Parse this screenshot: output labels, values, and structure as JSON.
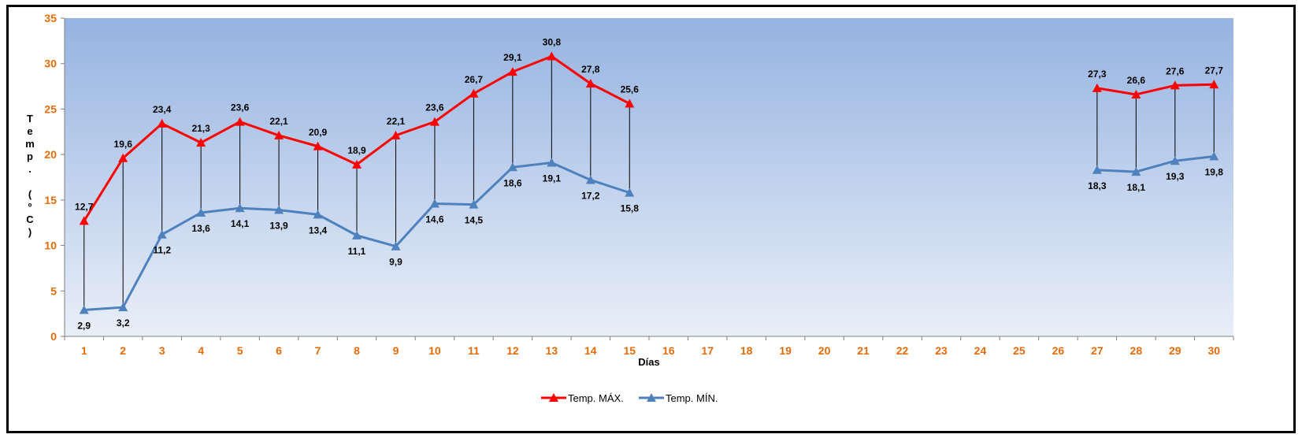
{
  "chart_data": {
    "type": "line",
    "xlabel": "Días",
    "ylabel_chars": [
      "T",
      "e",
      "m",
      "p",
      ".",
      "",
      "(",
      "º",
      "C",
      ")"
    ],
    "ylim": [
      0,
      35
    ],
    "yticks": [
      0,
      5,
      10,
      15,
      20,
      25,
      30,
      35
    ],
    "categories": [
      "1",
      "2",
      "3",
      "4",
      "5",
      "6",
      "7",
      "8",
      "9",
      "10",
      "11",
      "12",
      "13",
      "14",
      "15",
      "16",
      "17",
      "18",
      "19",
      "20",
      "21",
      "22",
      "23",
      "24",
      "25",
      "26",
      "27",
      "28",
      "29",
      "30"
    ],
    "grid": false,
    "legend_position": "bottom",
    "series": [
      {
        "name": "Temp. MÁX.",
        "color": "#FF0000",
        "values": [
          12.7,
          19.6,
          23.4,
          21.3,
          23.6,
          22.1,
          20.9,
          18.9,
          22.1,
          23.6,
          26.7,
          29.1,
          30.8,
          27.8,
          25.6,
          null,
          null,
          null,
          null,
          null,
          null,
          null,
          null,
          null,
          null,
          null,
          27.3,
          26.6,
          27.6,
          27.7
        ],
        "labels": [
          "12,7",
          "19,6",
          "23,4",
          "21,3",
          "23,6",
          "22,1",
          "20,9",
          "18,9",
          "22,1",
          "23,6",
          "26,7",
          "29,1",
          "30,8",
          "27,8",
          "25,6",
          "",
          "",
          "",
          "",
          "",
          "",
          "",
          "",
          "",
          "",
          "",
          "27,3",
          "26,6",
          "27,6",
          "27,7"
        ]
      },
      {
        "name": "Temp. MÍN.",
        "color": "#4F81BD",
        "values": [
          2.9,
          3.2,
          11.2,
          13.6,
          14.1,
          13.9,
          13.4,
          11.1,
          9.9,
          14.6,
          14.5,
          18.6,
          19.1,
          17.2,
          15.8,
          null,
          null,
          null,
          null,
          null,
          null,
          null,
          null,
          null,
          null,
          null,
          18.3,
          18.1,
          19.3,
          19.8
        ],
        "labels": [
          "2,9",
          "3,2",
          "11,2",
          "13,6",
          "14,1",
          "13,9",
          "13,4",
          "11,1",
          "9,9",
          "14,6",
          "14,5",
          "18,6",
          "19,1",
          "17,2",
          "15,8",
          "",
          "",
          "",
          "",
          "",
          "",
          "",
          "",
          "",
          "",
          "",
          "18,3",
          "18,1",
          "19,3",
          "19,8"
        ]
      }
    ],
    "colors": {
      "tick": "#E46C0A",
      "plot_top": "#95B3E1",
      "plot_bottom": "#E9EFF8"
    }
  }
}
